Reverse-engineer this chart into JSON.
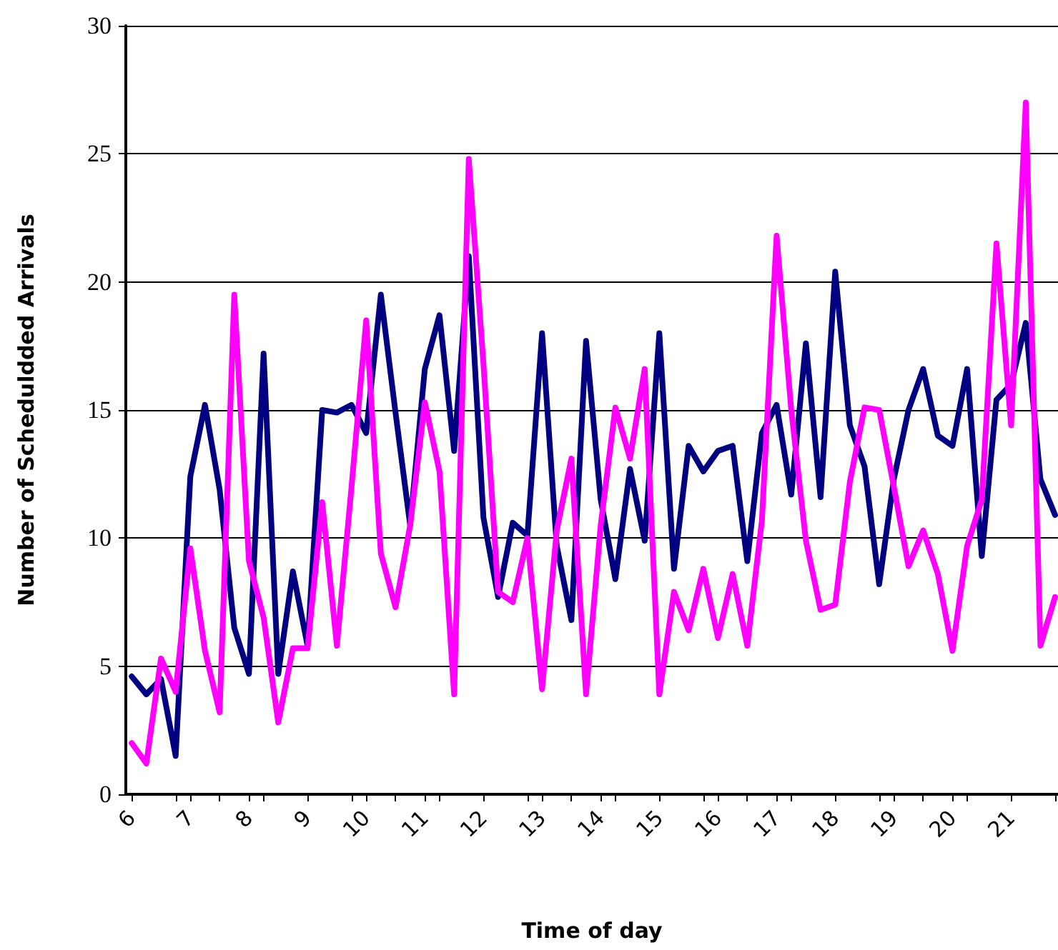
{
  "chart_data": {
    "type": "line",
    "xlabel": "Time of day",
    "ylabel": "Number of Scheduldded Arrivals",
    "x": [
      6,
      6.25,
      6.5,
      6.75,
      7,
      7.25,
      7.5,
      7.75,
      8,
      8.25,
      8.5,
      8.75,
      9,
      9.25,
      9.5,
      9.75,
      10,
      10.25,
      10.5,
      10.75,
      11,
      11.25,
      11.5,
      11.75,
      12,
      12.25,
      12.5,
      12.75,
      13,
      13.25,
      13.5,
      13.75,
      14,
      14.25,
      14.5,
      14.75,
      15,
      15.25,
      15.5,
      15.75,
      16,
      16.25,
      16.5,
      16.75,
      17,
      17.25,
      17.5,
      17.75,
      18,
      18.25,
      18.5,
      18.75,
      19,
      19.25,
      19.5,
      19.75,
      20,
      20.25,
      20.5,
      20.75,
      21,
      21.25,
      21.5,
      21.75
    ],
    "series": [
      {
        "color": "#000080",
        "values": [
          4.6,
          3.9,
          4.5,
          1.5,
          12.4,
          15.2,
          11.9,
          6.5,
          4.7,
          17.2,
          4.7,
          8.7,
          5.8,
          15.0,
          14.9,
          15.2,
          14.1,
          19.5,
          14.9,
          10.5,
          16.6,
          18.7,
          13.4,
          21.0,
          10.8,
          7.7,
          10.6,
          10.1,
          18.0,
          9.7,
          6.8,
          17.7,
          11.5,
          8.4,
          12.7,
          9.9,
          18.0,
          8.8,
          13.6,
          12.6,
          13.4,
          13.6,
          9.1,
          14.1,
          15.2,
          11.7,
          17.6,
          11.6,
          20.4,
          14.4,
          12.8,
          8.2,
          12.3,
          15.0,
          16.6,
          14.0,
          13.6,
          16.6,
          9.3,
          15.4,
          16.0,
          18.4,
          12.3,
          10.9
        ]
      },
      {
        "color": "#ff00ff",
        "values": [
          2.0,
          1.2,
          5.3,
          4.0,
          9.6,
          5.6,
          3.2,
          19.5,
          9.1,
          6.9,
          2.8,
          5.7,
          5.7,
          11.4,
          5.8,
          12.0,
          18.5,
          9.4,
          7.3,
          10.5,
          15.3,
          12.6,
          3.9,
          24.8,
          16.8,
          7.9,
          7.5,
          10.0,
          4.1,
          10.3,
          13.1,
          3.9,
          10.5,
          15.1,
          13.1,
          16.6,
          3.9,
          7.9,
          6.4,
          8.8,
          6.1,
          8.6,
          5.8,
          10.7,
          21.8,
          15.0,
          9.9,
          7.2,
          7.4,
          12.2,
          15.1,
          15.0,
          12.0,
          8.9,
          10.3,
          8.6,
          5.6,
          9.7,
          11.5,
          21.5,
          14.4,
          27.0,
          5.8,
          7.7
        ]
      }
    ],
    "xlim": [
      5.9,
      21.8
    ],
    "xticks": [
      6,
      7,
      8,
      9,
      10,
      11,
      12,
      13,
      14,
      15,
      16,
      17,
      18,
      19,
      20,
      21
    ],
    "ylim": [
      0,
      30
    ],
    "yticks": [
      0,
      5,
      10,
      15,
      20,
      25,
      30
    ],
    "grid": "y"
  }
}
